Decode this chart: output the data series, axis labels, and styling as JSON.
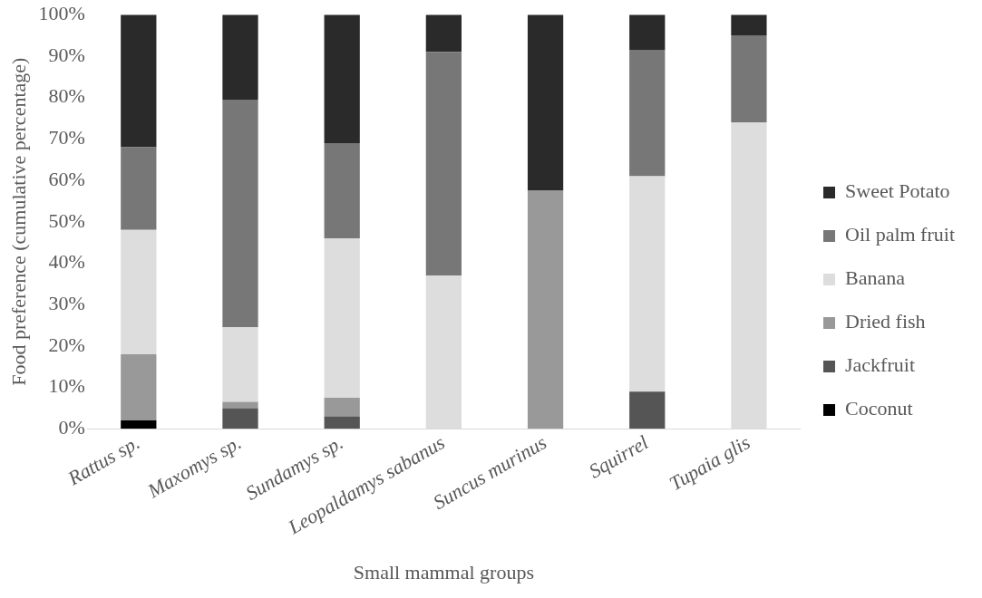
{
  "chart_data": {
    "type": "bar",
    "stacked": true,
    "xlabel": "Small mammal groups",
    "ylabel": "Food preference (cumulative percentage)",
    "categories": [
      "Rattus sp.",
      "Maxomys sp.",
      "Sundamys sp.",
      "Leopaldamys sabanus",
      "Suncus murinus",
      "Squirrel",
      "Tupaia glis"
    ],
    "series": [
      {
        "name": "Coconut",
        "color": "#000000",
        "values": [
          2,
          null,
          null,
          null,
          null,
          null,
          null
        ]
      },
      {
        "name": "Jackfruit",
        "color": "#555555",
        "values": [
          null,
          5,
          3,
          null,
          null,
          9,
          null
        ]
      },
      {
        "name": "Dried fish",
        "color": "#999999",
        "values": [
          16,
          1.5,
          4.5,
          null,
          57.5,
          null,
          null
        ]
      },
      {
        "name": "Banana",
        "color": "#dddddd",
        "values": [
          30,
          18,
          38.5,
          37,
          null,
          52,
          74
        ]
      },
      {
        "name": "Oil palm fruit",
        "color": "#777777",
        "values": [
          20,
          55,
          23,
          54,
          null,
          30.5,
          21
        ]
      },
      {
        "name": "Sweet Potato",
        "color": "#2a2a2a",
        "values": [
          32,
          20.5,
          31,
          9,
          42.5,
          8.5,
          5
        ]
      }
    ],
    "ylim": [
      0,
      100
    ],
    "yticks": [
      {
        "value": 0,
        "label": "0%"
      },
      {
        "value": 10,
        "label": "10%"
      },
      {
        "value": 20,
        "label": "20%"
      },
      {
        "value": 30,
        "label": "30%"
      },
      {
        "value": 40,
        "label": "40%"
      },
      {
        "value": 50,
        "label": "50%"
      },
      {
        "value": 60,
        "label": "60%"
      },
      {
        "value": 70,
        "label": "70%"
      },
      {
        "value": 80,
        "label": "80%"
      },
      {
        "value": 90,
        "label": "90%"
      },
      {
        "value": 100,
        "label": "100%"
      }
    ],
    "grid": false,
    "legend": "right"
  }
}
